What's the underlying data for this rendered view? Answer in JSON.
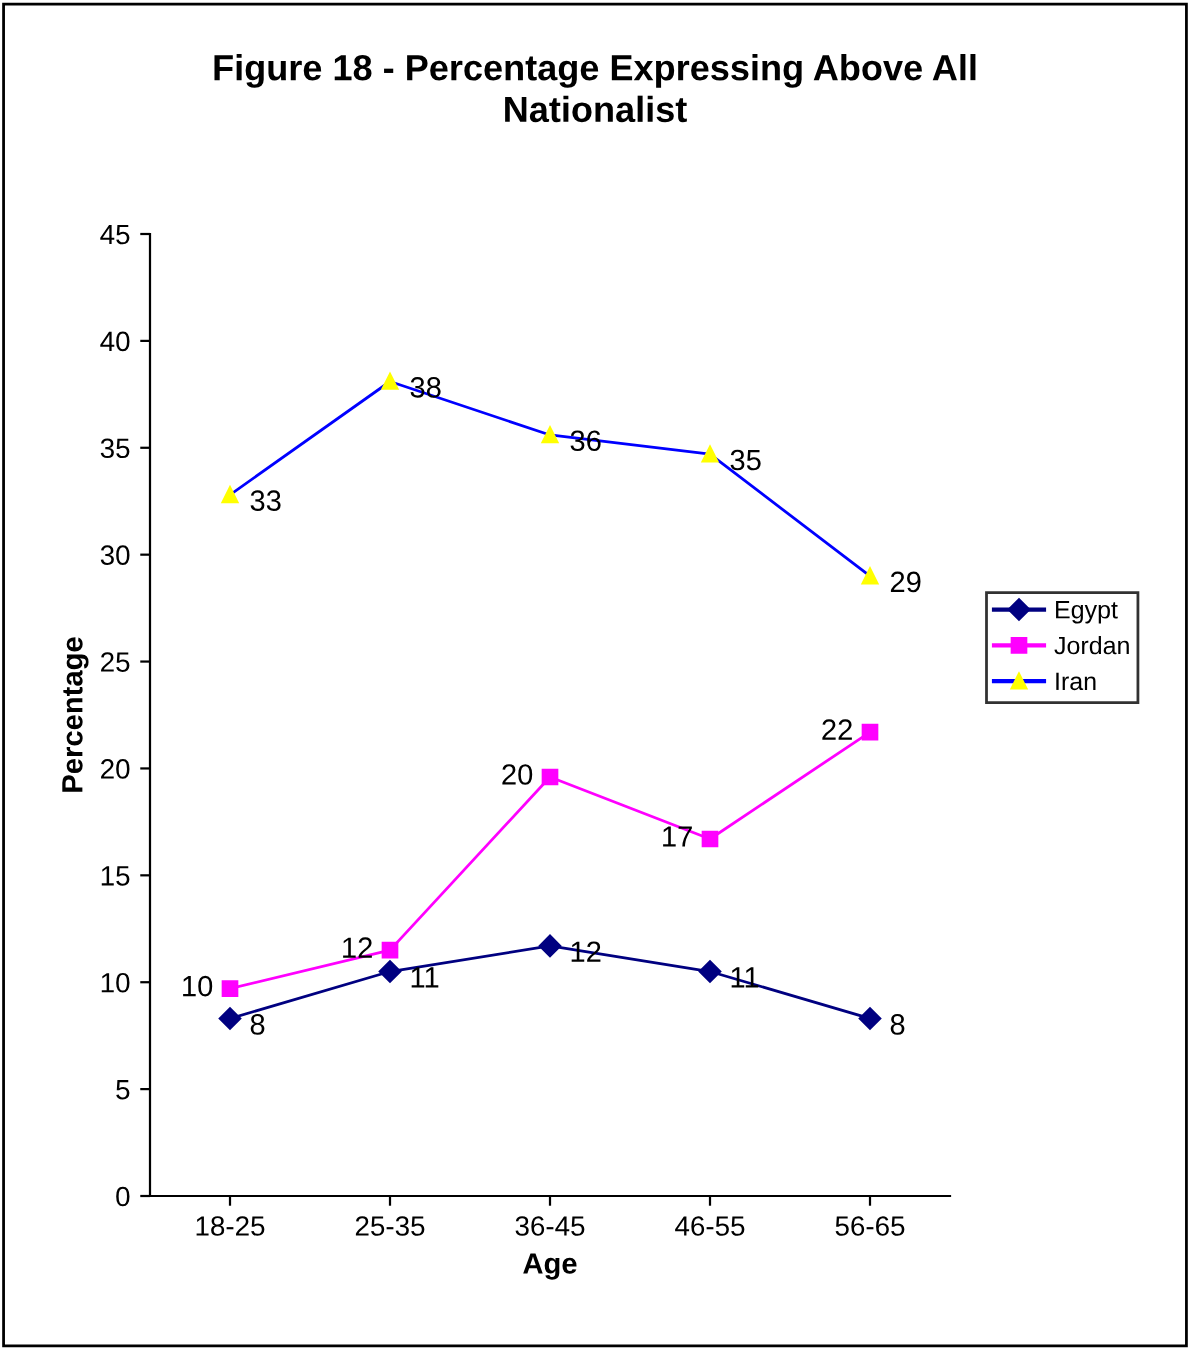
{
  "chart_data": {
    "type": "line",
    "title": "Figure 18 - Percentage Expressing Above All Nationalist",
    "xlabel": "Age",
    "ylabel": "Percentage",
    "categories": [
      "18-25",
      "25-35",
      "36-45",
      "46-55",
      "56-65"
    ],
    "series": [
      {
        "name": "Egypt",
        "color": "#000080",
        "marker": "diamond",
        "values": [
          8.3,
          10.5,
          11.7,
          10.5,
          8.3
        ],
        "value_labels": [
          "8",
          "11",
          "12",
          "11",
          "8"
        ]
      },
      {
        "name": "Jordan",
        "color": "#ff00ff",
        "marker": "square",
        "values": [
          9.7,
          11.5,
          19.6,
          16.7,
          21.7
        ],
        "value_labels": [
          "10",
          "12",
          "20",
          "17",
          "22"
        ]
      },
      {
        "name": "Iran",
        "color": "#0000ff",
        "colors": [
          "#ffff00",
          "#ffff00",
          "#ffff00",
          "#ffff00",
          "#ffff00"
        ],
        "marker": "triangle",
        "values": [
          32.8,
          38.1,
          35.6,
          34.7,
          29.0
        ],
        "value_labels": [
          "33",
          "38",
          "36",
          "35",
          "29"
        ]
      }
    ],
    "ylim": [
      0,
      45
    ],
    "yticks": [
      0,
      5,
      10,
      15,
      20,
      25,
      30,
      35,
      40,
      45
    ],
    "grid": false,
    "legend": "right"
  }
}
